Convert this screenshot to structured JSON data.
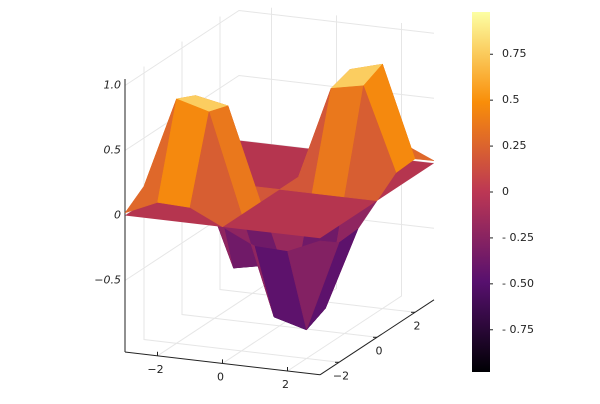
{
  "chart_data": {
    "type": "surface",
    "x": [
      -3,
      -2,
      -1,
      0,
      1,
      2,
      3
    ],
    "y": [
      -3,
      -2,
      -1,
      0,
      1,
      2,
      3
    ],
    "z": [
      [
        0.02,
        0.13,
        0.12,
        0,
        -0.12,
        -0.13,
        -0.02
      ],
      [
        0.13,
        0.83,
        0.76,
        0,
        -0.76,
        -0.83,
        -0.13
      ],
      [
        0.12,
        0.76,
        0.71,
        0,
        -0.71,
        -0.76,
        -0.12
      ],
      [
        0,
        0,
        0,
        0,
        0,
        0,
        0
      ],
      [
        -0.12,
        -0.76,
        -0.71,
        0,
        0.71,
        0.76,
        0.12
      ],
      [
        -0.13,
        -0.83,
        -0.76,
        0,
        0.76,
        0.83,
        0.13
      ],
      [
        -0.02,
        -0.13,
        -0.12,
        0,
        0.12,
        0.13,
        0.02
      ]
    ],
    "plane": {
      "z": 0,
      "color": "#b5354f"
    },
    "xlim": [
      -3,
      3
    ],
    "ylim": [
      -3,
      3
    ],
    "zlim": [
      -1.05,
      1.05
    ],
    "xticks": [
      {
        "value": -2,
        "label": "−2"
      },
      0,
      2
    ],
    "yticks": [
      {
        "value": -2,
        "label": "−2"
      },
      0,
      2
    ],
    "zticks": [
      {
        "value": -0.5,
        "label": "−0.5"
      },
      0,
      0.5,
      {
        "value": 1,
        "label": "1.0"
      }
    ],
    "clim": [
      -0.98,
      0.98
    ],
    "cticks": [
      {
        "value": -0.75,
        "label": "- 0.75"
      },
      {
        "value": -0.5,
        "label": "- 0.50"
      },
      {
        "value": -0.25,
        "label": "- 0.25"
      },
      0,
      0.25,
      0.5,
      0.75
    ],
    "colormap": [
      "#000004",
      "#57106e",
      "#bc3754",
      "#f98e09",
      "#fcffa4"
    ]
  }
}
